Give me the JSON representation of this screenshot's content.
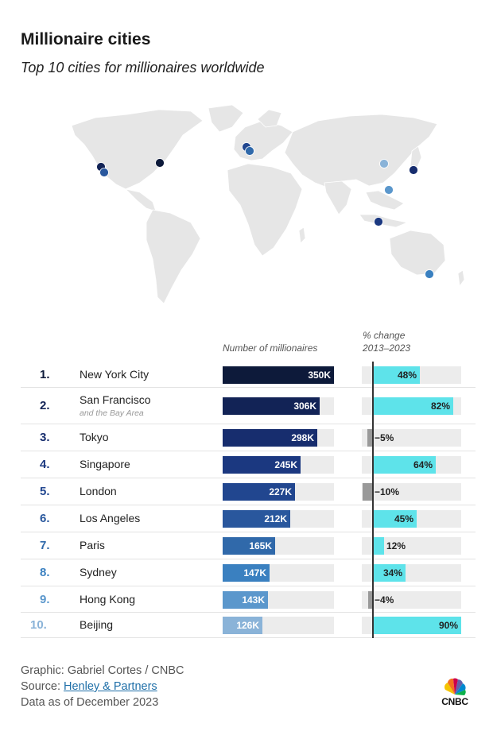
{
  "header": {
    "title": "Millionaire cities",
    "subtitle": "Top 10 cities for millionaires worldwide"
  },
  "columns": {
    "count_header": "Number of millionaires",
    "change_header_line1": "% change",
    "change_header_line2": "2013–2023"
  },
  "colors": {
    "map_land": "#e6e6e6",
    "change_positive": "#5ee3ea",
    "change_negative": "#999999",
    "bar_track": "#ececec"
  },
  "chart_data": {
    "type": "bar",
    "title": "Millionaire cities",
    "subtitle": "Top 10 cities for millionaires worldwide",
    "categories": [
      "New York City",
      "San Francisco",
      "Tokyo",
      "Singapore",
      "London",
      "Los Angeles",
      "Paris",
      "Sydney",
      "Hong Kong",
      "Beijing"
    ],
    "series": [
      {
        "name": "Number of millionaires",
        "values": [
          350000,
          306000,
          298000,
          245000,
          227000,
          212000,
          165000,
          147000,
          143000,
          126000
        ],
        "labels": [
          "350K",
          "306K",
          "298K",
          "245K",
          "227K",
          "212K",
          "165K",
          "147K",
          "143K",
          "126K"
        ]
      },
      {
        "name": "% change 2013–2023",
        "values": [
          48,
          82,
          -5,
          64,
          -10,
          45,
          12,
          34,
          -4,
          90
        ],
        "labels": [
          "48%",
          "82%",
          "−5%",
          "64%",
          "−10%",
          "45%",
          "12%",
          "34%",
          "−4%",
          "90%"
        ]
      }
    ],
    "count_range": [
      0,
      350000
    ],
    "change_range": [
      -10,
      90
    ]
  },
  "rows": [
    {
      "rank": "1.",
      "city": "New York City",
      "sub": "",
      "color": "#0d1a3a",
      "rank_color": "#0d1a3a"
    },
    {
      "rank": "2.",
      "city": "San Francisco",
      "sub": "and the Bay Area",
      "color": "#122356",
      "rank_color": "#122356"
    },
    {
      "rank": "3.",
      "city": "Tokyo",
      "sub": "",
      "color": "#172d6e",
      "rank_color": "#172d6e"
    },
    {
      "rank": "4.",
      "city": "Singapore",
      "sub": "",
      "color": "#1b3880",
      "rank_color": "#1b3880"
    },
    {
      "rank": "5.",
      "city": "London",
      "sub": "",
      "color": "#21468f",
      "rank_color": "#21468f"
    },
    {
      "rank": "6.",
      "city": "Los Angeles",
      "sub": "",
      "color": "#29579d",
      "rank_color": "#29579d"
    },
    {
      "rank": "7.",
      "city": "Paris",
      "sub": "",
      "color": "#3069aa",
      "rank_color": "#3069aa"
    },
    {
      "rank": "8.",
      "city": "Sydney",
      "sub": "",
      "color": "#3a80c0",
      "rank_color": "#3a80c0"
    },
    {
      "rank": "9.",
      "city": "Hong Kong",
      "sub": "",
      "color": "#5b97cc",
      "rank_color": "#5b97cc"
    },
    {
      "rank": "10.",
      "city": "Beijing",
      "sub": "",
      "color": "#8ab3d8",
      "rank_color": "#8ab3d8"
    }
  ],
  "map_points": [
    {
      "city": "New York City",
      "color": "#0d1a3a"
    },
    {
      "city": "San Francisco",
      "color": "#122356"
    },
    {
      "city": "Tokyo",
      "color": "#172d6e"
    },
    {
      "city": "Singapore",
      "color": "#1b3880"
    },
    {
      "city": "London",
      "color": "#21468f"
    },
    {
      "city": "Los Angeles",
      "color": "#29579d"
    },
    {
      "city": "Paris",
      "color": "#3069aa"
    },
    {
      "city": "Sydney",
      "color": "#3a80c0"
    },
    {
      "city": "Hong Kong",
      "color": "#5b97cc"
    },
    {
      "city": "Beijing",
      "color": "#8ab3d8"
    }
  ],
  "footer": {
    "graphic_credit": "Graphic: Gabriel Cortes / CNBC",
    "source_prefix": "Source: ",
    "source_link": "Henley & Partners",
    "data_note": "Data as of December 2023"
  },
  "logo": {
    "text": "CNBC",
    "icon": "nbc-peacock-icon"
  }
}
